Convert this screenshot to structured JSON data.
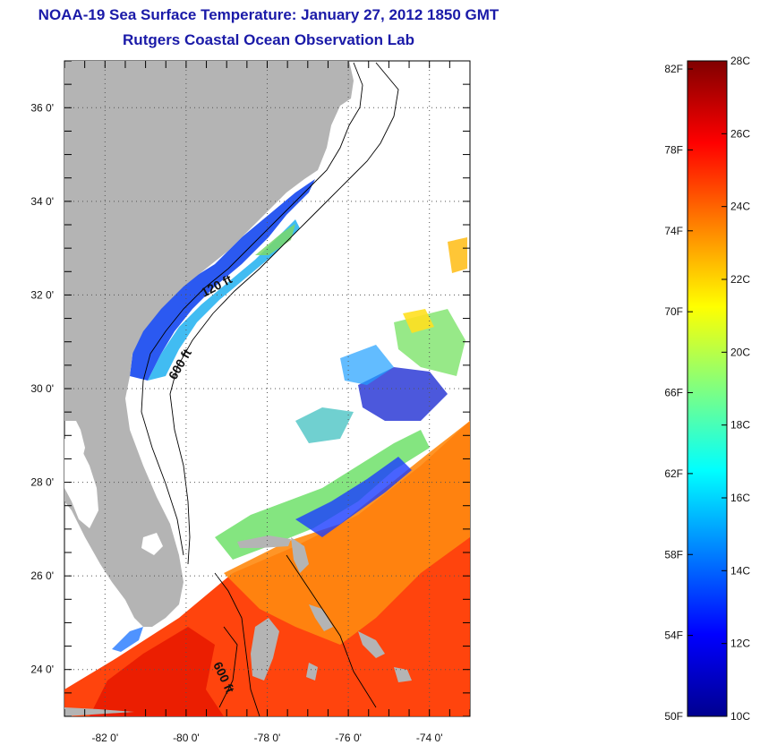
{
  "title_line1": "NOAA-19 Sea Surface Temperature:  January 27, 2012 1850 GMT",
  "title_line2": "Rutgers Coastal Ocean Observation Lab",
  "map": {
    "lon_range": [
      -83,
      -73
    ],
    "lat_range": [
      23,
      37
    ],
    "lon_ticks": [
      {
        "value": -82,
        "label": "-82 0'"
      },
      {
        "value": -80,
        "label": "-80 0'"
      },
      {
        "value": -78,
        "label": "-78 0'"
      },
      {
        "value": -76,
        "label": "-76 0'"
      },
      {
        "value": -74,
        "label": "-74 0'"
      }
    ],
    "lat_ticks": [
      {
        "value": 24,
        "label": "24 0'"
      },
      {
        "value": 26,
        "label": "26 0'"
      },
      {
        "value": 28,
        "label": "28 0'"
      },
      {
        "value": 30,
        "label": "30 0'"
      },
      {
        "value": 32,
        "label": "32 0'"
      },
      {
        "value": 34,
        "label": "34 0'"
      },
      {
        "value": 36,
        "label": "36 0'"
      }
    ],
    "gridlines": "dotted",
    "isobath_labels": [
      "120 ft",
      "600 ft",
      "600 ft"
    ],
    "land_color": "#b4b4b4",
    "no_data_color": "#ffffff"
  },
  "colorbar": {
    "temp_range_c": [
      10,
      28
    ],
    "fahrenheit_labels": [
      {
        "value": 50,
        "label": "50F"
      },
      {
        "value": 54,
        "label": "54F"
      },
      {
        "value": 58,
        "label": "58F"
      },
      {
        "value": 62,
        "label": "62F"
      },
      {
        "value": 66,
        "label": "66F"
      },
      {
        "value": 70,
        "label": "70F"
      },
      {
        "value": 74,
        "label": "74F"
      },
      {
        "value": 78,
        "label": "78F"
      },
      {
        "value": 82,
        "label": "82F"
      }
    ],
    "celsius_labels": [
      {
        "value": 10,
        "label": "10C"
      },
      {
        "value": 12,
        "label": "12C"
      },
      {
        "value": 14,
        "label": "14C"
      },
      {
        "value": 16,
        "label": "16C"
      },
      {
        "value": 18,
        "label": "18C"
      },
      {
        "value": 20,
        "label": "20C"
      },
      {
        "value": 22,
        "label": "22C"
      },
      {
        "value": 24,
        "label": "24C"
      },
      {
        "value": 26,
        "label": "26C"
      },
      {
        "value": 28,
        "label": "28C"
      }
    ],
    "stops": [
      "#00008f",
      "#0000ff",
      "#0080ff",
      "#00ffff",
      "#80ff80",
      "#ffff00",
      "#ff8000",
      "#ff0000",
      "#800000"
    ]
  }
}
